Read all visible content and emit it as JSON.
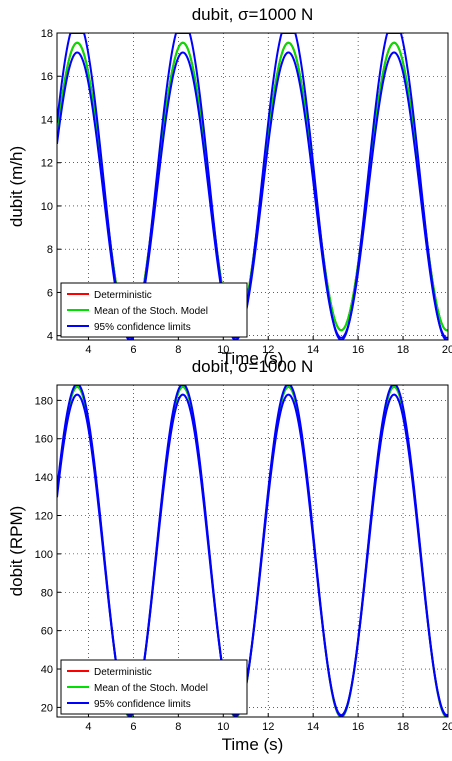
{
  "chart_data": [
    {
      "type": "line",
      "title": "dubit, σ=1000 N",
      "xlabel": "Time (s)",
      "ylabel": "dubit (m/h)",
      "xlim": [
        2.6,
        20
      ],
      "ylim": [
        3.8,
        18
      ],
      "xticks": [
        4,
        6,
        8,
        10,
        12,
        14,
        16,
        18,
        20
      ],
      "yticks": [
        4,
        6,
        8,
        10,
        12,
        14,
        16,
        18
      ],
      "grid": true,
      "legend_position": "bottom-left",
      "model": {
        "period": 4.7,
        "peak_time": 3.5,
        "clip_high": 18
      },
      "series": [
        {
          "name": "Deterministic",
          "color": "#ff0000",
          "mean": 10.9,
          "amplitude": 6.65
        },
        {
          "name": "Mean of the Stoch. Model",
          "color": "#00e000",
          "mean": 10.9,
          "amplitude": 6.65
        },
        {
          "name": "95% confidence limits",
          "color": "#0000ff",
          "bands": [
            {
              "mean": 10.5,
              "amplitude": 6.6
            },
            {
              "mean": 11.2,
              "amplitude": 7.4
            }
          ]
        }
      ]
    },
    {
      "type": "line",
      "title": "dobit, σ=1000 N",
      "xlabel": "Time (s)",
      "ylabel": "dobit (RPM)",
      "xlim": [
        2.6,
        20
      ],
      "ylim": [
        15,
        188
      ],
      "xticks": [
        4,
        6,
        8,
        10,
        12,
        14,
        16,
        18,
        20
      ],
      "yticks": [
        20,
        40,
        60,
        80,
        100,
        120,
        140,
        160,
        180
      ],
      "grid": true,
      "legend_position": "bottom-left",
      "model": {
        "period": 4.7,
        "peak_time": 3.5,
        "clip_high": 188
      },
      "series": [
        {
          "name": "Deterministic",
          "color": "#ff0000",
          "mean": 101,
          "amplitude": 86
        },
        {
          "name": "Mean of the Stoch. Model",
          "color": "#00e000",
          "mean": 101,
          "amplitude": 86
        },
        {
          "name": "95% confidence limits",
          "color": "#0000ff",
          "bands": [
            {
              "mean": 99.5,
              "amplitude": 83.5
            },
            {
              "mean": 102,
              "amplitude": 86.5
            }
          ]
        }
      ]
    }
  ]
}
